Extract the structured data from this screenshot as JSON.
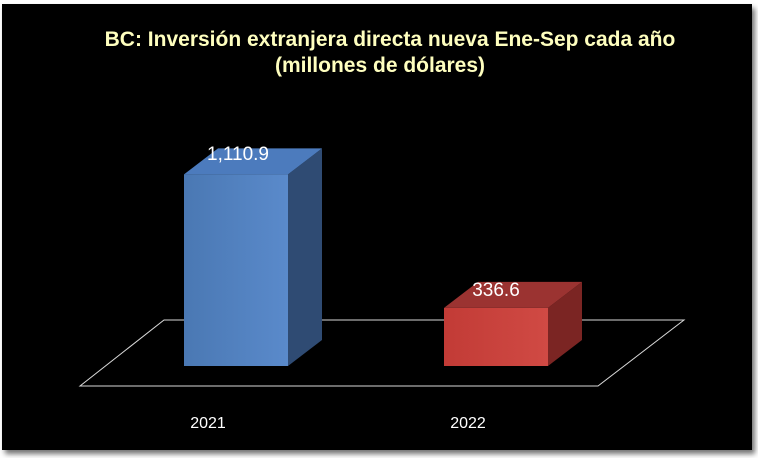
{
  "chart_data": {
    "type": "bar",
    "title_lines": [
      "BC: Inversión extranjera directa nueva Ene-Sep cada año",
      "(millones de dólares)"
    ],
    "categories": [
      "2021",
      "2022"
    ],
    "values": [
      1110.9,
      336.6
    ],
    "value_labels": [
      "1,110.9",
      "336.6"
    ],
    "bar_colors": [
      "#4f81bd",
      "#c0504d"
    ],
    "xlabel": "",
    "ylabel": "",
    "ylim": [
      0,
      1200
    ],
    "grid": false,
    "legend": "none",
    "style": "3d-column"
  }
}
